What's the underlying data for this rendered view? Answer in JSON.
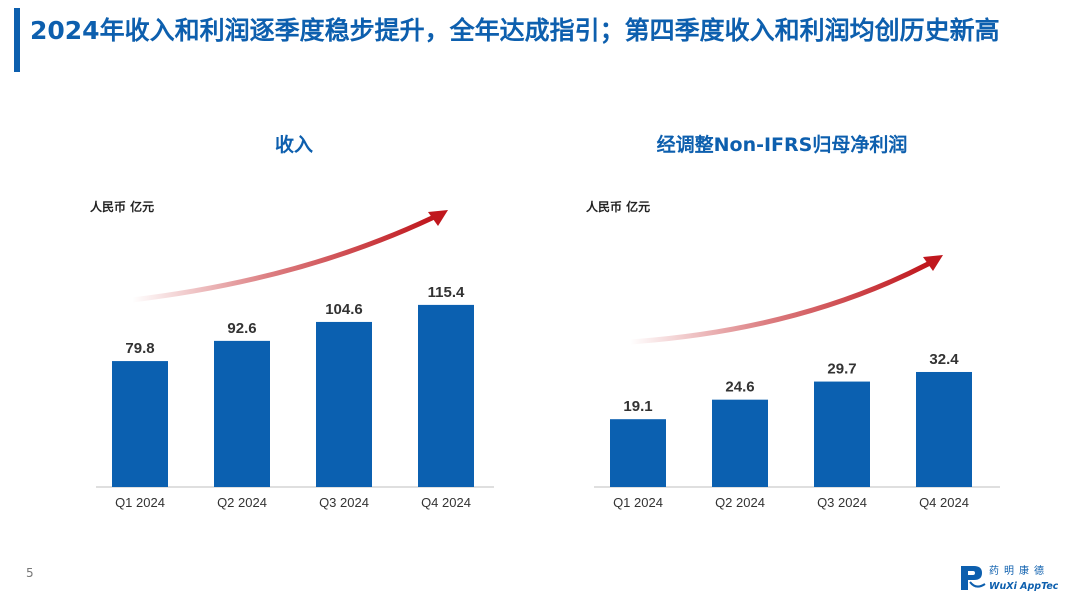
{
  "slide": {
    "title": "2024年收入和利润逐季度稳步提升，全年达成指引；第四季度收入和利润均创历史新高",
    "page_number": "5",
    "logo": {
      "text_cn": "药明康德",
      "text_en": "WuXi AppTec",
      "color": "#0d5fae"
    }
  },
  "colors": {
    "accent": "#0d5fae",
    "bar": "#0b60b0",
    "arrow": "#c0171d"
  },
  "chart_data": [
    {
      "type": "bar",
      "title": "收入",
      "ylabel": "人民币 亿元",
      "categories": [
        "Q1 2024",
        "Q2 2024",
        "Q3 2024",
        "Q4 2024"
      ],
      "values": [
        79.8,
        92.6,
        104.6,
        115.4
      ],
      "value_labels": [
        "79.8",
        "92.6",
        "104.6",
        "115.4"
      ],
      "ylim": [
        0,
        120
      ],
      "grid": false,
      "legend": "none",
      "annotations": [
        "upward-trend-arrow"
      ]
    },
    {
      "type": "bar",
      "title": "经调整Non-IFRS归母净利润",
      "ylabel": "人民币 亿元",
      "categories": [
        "Q1 2024",
        "Q2 2024",
        "Q3 2024",
        "Q4 2024"
      ],
      "values": [
        19.1,
        24.6,
        29.7,
        32.4
      ],
      "value_labels": [
        "19.1",
        "24.6",
        "29.7",
        "32.4"
      ],
      "ylim": [
        0,
        38
      ],
      "grid": false,
      "legend": "none",
      "annotations": [
        "upward-trend-arrow"
      ]
    }
  ]
}
